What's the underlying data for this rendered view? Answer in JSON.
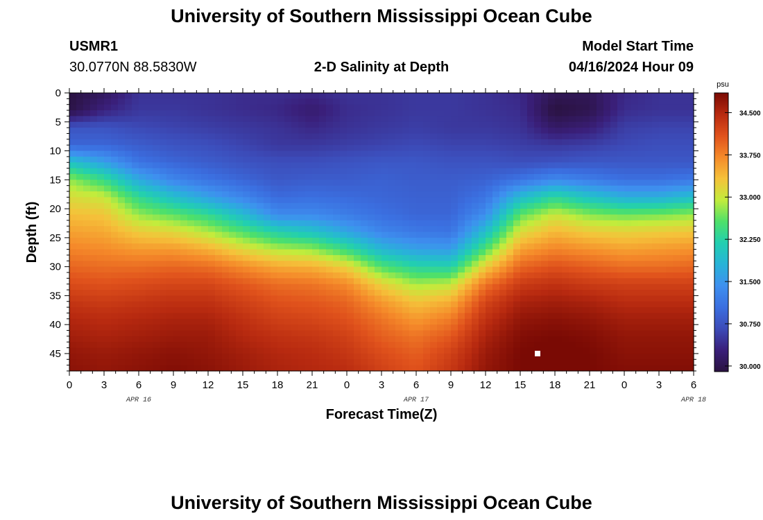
{
  "header": {
    "title_top": "University of Southern Mississippi Ocean Cube",
    "station_id": "USMR1",
    "station_coords": "30.0770N  88.5830W",
    "chart_title": "2-D Salinity at Depth",
    "model_start_label": "Model Start Time",
    "model_start_value": "04/16/2024 Hour 09",
    "title_bottom": "University of Southern Mississippi Ocean Cube"
  },
  "colorbar": {
    "unit": "psu",
    "tick_labels": [
      "34.500",
      "33.750",
      "33.000",
      "32.250",
      "31.500",
      "30.750",
      "30.000"
    ]
  },
  "chart_data": {
    "type": "heatmap",
    "xlabel": "Forecast Time(Z)",
    "ylabel": "Depth (ft)",
    "x_tick_labels": [
      "0",
      "3",
      "6",
      "9",
      "12",
      "15",
      "18",
      "21",
      "0",
      "3",
      "6",
      "9",
      "12",
      "15",
      "18",
      "21",
      "0",
      "3",
      "6"
    ],
    "x_date_labels": [
      {
        "label": "APR 16",
        "hour": 6
      },
      {
        "label": "APR 17",
        "hour": 30
      },
      {
        "label": "APR 18",
        "hour": 54
      }
    ],
    "x_range_hours": [
      0,
      54
    ],
    "y_tick_labels": [
      "0",
      "5",
      "10",
      "15",
      "20",
      "25",
      "30",
      "35",
      "40",
      "45"
    ],
    "y_range": [
      0,
      48
    ],
    "color_range": [
      29.9,
      34.85
    ],
    "marker": {
      "hour": 40.5,
      "depth": 45
    },
    "colormap": [
      "#2a1240",
      "#3a1f7a",
      "#3c4bb8",
      "#3b6fe0",
      "#3e90ef",
      "#28b3d8",
      "#22cfb0",
      "#4ee06a",
      "#c2ec3c",
      "#f5c23a",
      "#f58a2a",
      "#e0521c",
      "#b82a10",
      "#7a0a04"
    ],
    "profile_hours": [
      0,
      3,
      6,
      9,
      12,
      15,
      18,
      21,
      24,
      27,
      30,
      33,
      36,
      39,
      42,
      45,
      48,
      51,
      54
    ],
    "profile_depths": [
      0,
      3,
      6,
      9,
      12,
      15,
      18,
      21,
      24,
      27,
      30,
      33,
      36,
      39,
      42,
      45,
      48
    ],
    "salinity": [
      [
        29.9,
        29.95,
        30.75,
        30.95,
        32.0,
        32.8,
        33.1,
        33.35,
        33.55,
        33.75,
        33.95,
        34.15,
        34.35,
        34.5,
        34.6,
        34.7,
        34.75
      ],
      [
        30.1,
        30.3,
        30.75,
        30.95,
        31.6,
        32.4,
        33.0,
        33.3,
        33.5,
        33.7,
        33.9,
        34.1,
        34.3,
        34.45,
        34.55,
        34.65,
        34.7
      ],
      [
        30.45,
        30.5,
        30.65,
        30.85,
        31.1,
        31.7,
        32.35,
        32.8,
        33.25,
        33.6,
        33.9,
        34.15,
        34.35,
        34.5,
        34.6,
        34.7,
        34.75
      ],
      [
        30.45,
        30.5,
        30.6,
        30.75,
        30.95,
        31.3,
        31.95,
        32.6,
        33.15,
        33.6,
        33.95,
        34.2,
        34.4,
        34.55,
        34.65,
        34.75,
        34.8
      ],
      [
        30.45,
        30.45,
        30.55,
        30.7,
        30.85,
        31.1,
        31.6,
        32.35,
        32.9,
        33.45,
        33.9,
        34.2,
        34.4,
        34.55,
        34.65,
        34.7,
        34.75
      ],
      [
        30.4,
        30.4,
        30.5,
        30.6,
        30.75,
        30.95,
        31.3,
        31.9,
        32.55,
        33.15,
        33.7,
        34.05,
        34.25,
        34.4,
        34.5,
        34.6,
        34.65
      ],
      [
        30.4,
        30.35,
        30.45,
        30.5,
        30.7,
        30.8,
        31.0,
        31.35,
        32.2,
        32.9,
        33.5,
        33.9,
        34.1,
        34.25,
        34.4,
        34.5,
        34.55
      ],
      [
        30.35,
        30.2,
        30.35,
        30.5,
        30.7,
        30.85,
        31.05,
        31.35,
        32.0,
        32.8,
        33.45,
        33.85,
        34.05,
        34.2,
        34.35,
        34.45,
        34.5
      ],
      [
        30.45,
        30.4,
        30.45,
        30.55,
        30.75,
        30.85,
        31.0,
        31.2,
        31.65,
        32.4,
        33.2,
        33.7,
        33.95,
        34.1,
        34.25,
        34.35,
        34.45
      ],
      [
        30.45,
        30.45,
        30.5,
        30.6,
        30.8,
        30.9,
        30.95,
        31.05,
        31.3,
        31.85,
        32.55,
        33.2,
        33.6,
        33.85,
        34.0,
        34.15,
        34.25
      ],
      [
        30.5,
        30.5,
        30.55,
        30.65,
        30.8,
        30.85,
        30.9,
        30.95,
        31.15,
        31.6,
        32.25,
        32.85,
        33.3,
        33.6,
        33.85,
        34.0,
        34.1
      ],
      [
        30.5,
        30.5,
        30.5,
        30.6,
        30.75,
        30.85,
        30.9,
        30.95,
        31.1,
        31.55,
        32.2,
        32.95,
        33.45,
        33.8,
        34.05,
        34.25,
        34.35
      ],
      [
        30.45,
        30.45,
        30.5,
        30.6,
        30.75,
        30.9,
        31.1,
        31.4,
        31.95,
        32.55,
        33.25,
        33.85,
        34.2,
        34.4,
        34.55,
        34.65,
        34.7
      ],
      [
        30.35,
        30.4,
        30.45,
        30.55,
        30.7,
        31.1,
        31.9,
        32.6,
        33.1,
        33.55,
        33.95,
        34.3,
        34.55,
        34.7,
        34.8,
        34.85,
        34.85
      ],
      [
        30.05,
        29.9,
        30.15,
        30.5,
        30.75,
        31.35,
        32.3,
        33.0,
        33.4,
        33.75,
        34.1,
        34.4,
        34.6,
        34.75,
        34.85,
        34.9,
        34.9
      ],
      [
        30.05,
        30.0,
        30.25,
        30.55,
        30.8,
        31.2,
        32.0,
        32.75,
        33.25,
        33.65,
        34.0,
        34.3,
        34.55,
        34.7,
        34.8,
        34.85,
        34.85
      ],
      [
        30.35,
        30.4,
        30.55,
        30.65,
        30.8,
        31.05,
        31.75,
        32.65,
        33.2,
        33.55,
        33.9,
        34.25,
        34.45,
        34.6,
        34.7,
        34.75,
        34.8
      ],
      [
        30.45,
        30.45,
        30.6,
        30.7,
        30.8,
        31.05,
        31.75,
        32.7,
        33.25,
        33.6,
        33.9,
        34.25,
        34.45,
        34.6,
        34.7,
        34.75,
        34.8
      ],
      [
        30.45,
        30.45,
        30.6,
        30.7,
        30.8,
        31.15,
        31.95,
        32.8,
        33.3,
        33.65,
        33.95,
        34.25,
        34.45,
        34.6,
        34.7,
        34.75,
        34.8
      ]
    ]
  }
}
